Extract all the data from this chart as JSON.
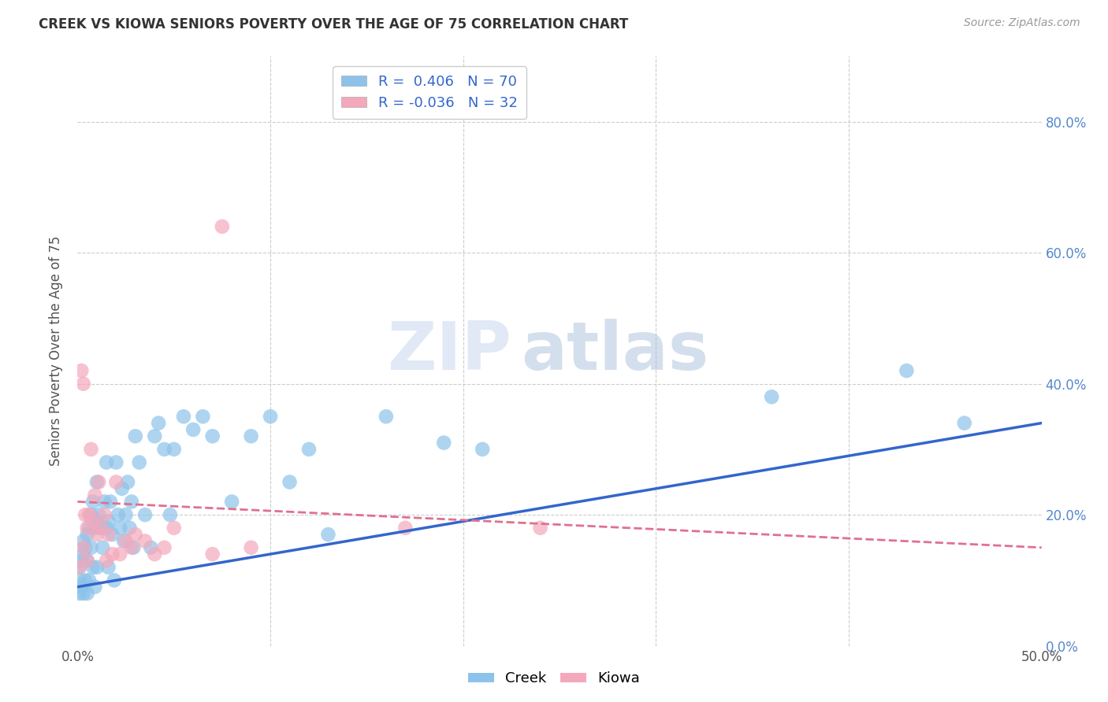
{
  "title": "CREEK VS KIOWA SENIORS POVERTY OVER THE AGE OF 75 CORRELATION CHART",
  "source": "Source: ZipAtlas.com",
  "ylabel": "Seniors Poverty Over the Age of 75",
  "xlim": [
    0.0,
    0.5
  ],
  "ylim": [
    0.0,
    0.9
  ],
  "xtick_vals": [
    0.0,
    0.1,
    0.2,
    0.3,
    0.4,
    0.5
  ],
  "xtick_labels": [
    "0.0%",
    "",
    "",
    "",
    "",
    "50.0%"
  ],
  "ytick_vals": [
    0.0,
    0.2,
    0.4,
    0.6,
    0.8
  ],
  "ytick_labels_right": [
    "0.0%",
    "20.0%",
    "40.0%",
    "60.0%",
    "80.0%"
  ],
  "creek_color": "#8dc3ea",
  "kiowa_color": "#f4a8bb",
  "creek_line_color": "#3366cc",
  "kiowa_line_color": "#e07090",
  "background_color": "#ffffff",
  "grid_color": "#cccccc",
  "creek_R": "0.406",
  "creek_N": "70",
  "kiowa_R": "-0.036",
  "kiowa_N": "32",
  "watermark_zip": "ZIP",
  "watermark_atlas": "atlas",
  "creek_x": [
    0.001,
    0.001,
    0.001,
    0.002,
    0.002,
    0.003,
    0.003,
    0.003,
    0.004,
    0.004,
    0.005,
    0.005,
    0.005,
    0.006,
    0.006,
    0.007,
    0.007,
    0.008,
    0.008,
    0.009,
    0.009,
    0.01,
    0.01,
    0.01,
    0.011,
    0.012,
    0.013,
    0.014,
    0.015,
    0.015,
    0.016,
    0.016,
    0.017,
    0.018,
    0.019,
    0.02,
    0.021,
    0.022,
    0.023,
    0.024,
    0.025,
    0.026,
    0.027,
    0.028,
    0.029,
    0.03,
    0.032,
    0.035,
    0.038,
    0.04,
    0.042,
    0.045,
    0.048,
    0.05,
    0.055,
    0.06,
    0.065,
    0.07,
    0.08,
    0.09,
    0.1,
    0.11,
    0.12,
    0.13,
    0.16,
    0.19,
    0.21,
    0.36,
    0.43,
    0.46
  ],
  "creek_y": [
    0.08,
    0.1,
    0.12,
    0.13,
    0.09,
    0.16,
    0.14,
    0.08,
    0.15,
    0.1,
    0.17,
    0.13,
    0.08,
    0.18,
    0.1,
    0.2,
    0.15,
    0.22,
    0.12,
    0.18,
    0.09,
    0.25,
    0.19,
    0.12,
    0.2,
    0.18,
    0.15,
    0.22,
    0.28,
    0.18,
    0.19,
    0.12,
    0.22,
    0.17,
    0.1,
    0.28,
    0.2,
    0.18,
    0.24,
    0.16,
    0.2,
    0.25,
    0.18,
    0.22,
    0.15,
    0.32,
    0.28,
    0.2,
    0.15,
    0.32,
    0.34,
    0.3,
    0.2,
    0.3,
    0.35,
    0.33,
    0.35,
    0.32,
    0.22,
    0.32,
    0.35,
    0.25,
    0.3,
    0.17,
    0.35,
    0.31,
    0.3,
    0.38,
    0.42,
    0.34
  ],
  "kiowa_x": [
    0.001,
    0.002,
    0.003,
    0.003,
    0.004,
    0.005,
    0.005,
    0.006,
    0.007,
    0.008,
    0.009,
    0.01,
    0.011,
    0.012,
    0.014,
    0.015,
    0.016,
    0.018,
    0.02,
    0.022,
    0.025,
    0.028,
    0.03,
    0.035,
    0.04,
    0.045,
    0.05,
    0.07,
    0.075,
    0.09,
    0.17,
    0.24
  ],
  "kiowa_y": [
    0.12,
    0.42,
    0.4,
    0.15,
    0.2,
    0.18,
    0.13,
    0.2,
    0.3,
    0.19,
    0.23,
    0.17,
    0.25,
    0.18,
    0.2,
    0.13,
    0.17,
    0.14,
    0.25,
    0.14,
    0.16,
    0.15,
    0.17,
    0.16,
    0.14,
    0.15,
    0.18,
    0.14,
    0.64,
    0.15,
    0.18,
    0.18
  ]
}
